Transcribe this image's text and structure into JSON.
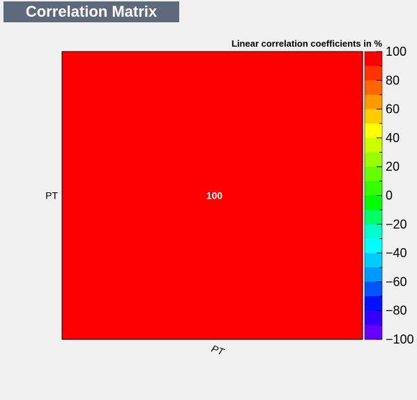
{
  "header": {
    "title": "Correlation Matrix"
  },
  "chart_data": {
    "type": "heatmap",
    "title": "Linear correlation coefficients in %",
    "x_categories": [
      "PT"
    ],
    "y_categories": [
      "PT"
    ],
    "values": [
      [
        100
      ]
    ],
    "zlim": [
      -100,
      100
    ],
    "colorbar": {
      "ticks": [
        "100",
        "80",
        "60",
        "40",
        "20",
        "0",
        "−20",
        "−40",
        "−60",
        "−80",
        "−100"
      ],
      "tick_values": [
        100,
        80,
        60,
        40,
        20,
        0,
        -20,
        -40,
        -60,
        -80,
        -100
      ],
      "colors": [
        "#ff0000",
        "#ff3300",
        "#ff6600",
        "#ff9900",
        "#ffcc00",
        "#ffff00",
        "#ccff00",
        "#99ff00",
        "#66ff00",
        "#33ff00",
        "#00ff00",
        "#00ff66",
        "#00ffcc",
        "#00ffff",
        "#00ccff",
        "#0099ff",
        "#0055ff",
        "#0011ff",
        "#3300ff",
        "#6600ff"
      ]
    },
    "cell_color": "#ff0000",
    "legend": "none",
    "grid": false
  }
}
